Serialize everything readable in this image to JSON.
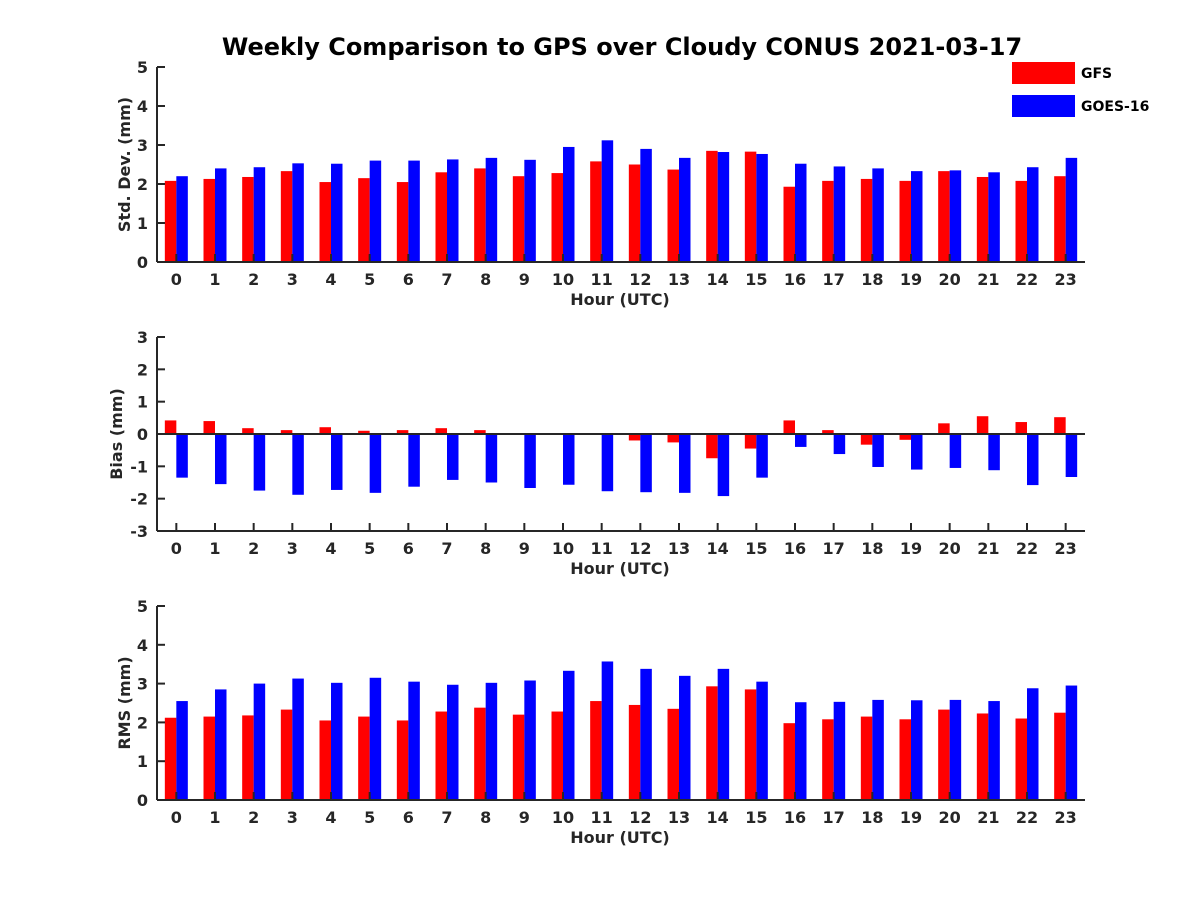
{
  "title": "Weekly Comparison to GPS over Cloudy CONUS 2021-03-17",
  "legend": [
    {
      "name": "GFS",
      "color": "#ff0000"
    },
    {
      "name": "GOES-16",
      "color": "#0000ff"
    }
  ],
  "chart_data": [
    {
      "type": "bar",
      "xlabel": "Hour (UTC)",
      "ylabel": "Std. Dev. (mm)",
      "ylim": [
        0,
        5
      ],
      "yticks": [
        0,
        1,
        2,
        3,
        4,
        5
      ],
      "categories": [
        "0",
        "1",
        "2",
        "3",
        "4",
        "5",
        "6",
        "7",
        "8",
        "9",
        "10",
        "11",
        "12",
        "13",
        "14",
        "15",
        "16",
        "17",
        "18",
        "19",
        "20",
        "21",
        "22",
        "23"
      ],
      "series": [
        {
          "name": "GFS",
          "color": "#ff0000",
          "values": [
            2.08,
            2.13,
            2.18,
            2.33,
            2.05,
            2.15,
            2.05,
            2.3,
            2.4,
            2.2,
            2.28,
            2.58,
            2.5,
            2.37,
            2.85,
            2.83,
            1.93,
            2.08,
            2.13,
            2.08,
            2.33,
            2.18,
            2.08,
            2.2
          ]
        },
        {
          "name": "GOES-16",
          "color": "#0000ff",
          "values": [
            2.2,
            2.4,
            2.43,
            2.53,
            2.52,
            2.6,
            2.6,
            2.63,
            2.67,
            2.62,
            2.95,
            3.12,
            2.9,
            2.67,
            2.82,
            2.77,
            2.52,
            2.45,
            2.4,
            2.33,
            2.35,
            2.3,
            2.43,
            2.67
          ]
        }
      ]
    },
    {
      "type": "bar",
      "xlabel": "Hour (UTC)",
      "ylabel": "Bias (mm)",
      "ylim": [
        -3,
        3
      ],
      "yticks": [
        -3,
        -2,
        -1,
        0,
        1,
        2,
        3
      ],
      "categories": [
        "0",
        "1",
        "2",
        "3",
        "4",
        "5",
        "6",
        "7",
        "8",
        "9",
        "10",
        "11",
        "12",
        "13",
        "14",
        "15",
        "16",
        "17",
        "18",
        "19",
        "20",
        "21",
        "22",
        "23"
      ],
      "series": [
        {
          "name": "GFS",
          "color": "#ff0000",
          "values": [
            0.42,
            0.4,
            0.18,
            0.12,
            0.21,
            0.1,
            0.12,
            0.18,
            0.12,
            -0.03,
            0.0,
            -0.03,
            -0.2,
            -0.26,
            -0.75,
            -0.45,
            0.42,
            0.12,
            -0.33,
            -0.18,
            0.33,
            0.55,
            0.37,
            0.52
          ]
        },
        {
          "name": "GOES-16",
          "color": "#0000ff",
          "values": [
            -1.35,
            -1.55,
            -1.75,
            -1.88,
            -1.73,
            -1.82,
            -1.63,
            -1.42,
            -1.5,
            -1.67,
            -1.57,
            -1.77,
            -1.8,
            -1.82,
            -1.92,
            -1.35,
            -0.4,
            -0.62,
            -1.02,
            -1.1,
            -1.05,
            -1.12,
            -1.58,
            -1.33
          ]
        }
      ]
    },
    {
      "type": "bar",
      "xlabel": "Hour (UTC)",
      "ylabel": "RMS (mm)",
      "ylim": [
        0,
        5
      ],
      "yticks": [
        0,
        1,
        2,
        3,
        4,
        5
      ],
      "categories": [
        "0",
        "1",
        "2",
        "3",
        "4",
        "5",
        "6",
        "7",
        "8",
        "9",
        "10",
        "11",
        "12",
        "13",
        "14",
        "15",
        "16",
        "17",
        "18",
        "19",
        "20",
        "21",
        "22",
        "23"
      ],
      "series": [
        {
          "name": "GFS",
          "color": "#ff0000",
          "values": [
            2.12,
            2.15,
            2.18,
            2.33,
            2.05,
            2.15,
            2.05,
            2.28,
            2.38,
            2.2,
            2.28,
            2.55,
            2.45,
            2.35,
            2.93,
            2.85,
            1.98,
            2.08,
            2.15,
            2.08,
            2.33,
            2.23,
            2.1,
            2.25
          ]
        },
        {
          "name": "GOES-16",
          "color": "#0000ff",
          "values": [
            2.55,
            2.85,
            3.0,
            3.13,
            3.02,
            3.15,
            3.05,
            2.97,
            3.02,
            3.08,
            3.33,
            3.57,
            3.38,
            3.2,
            3.38,
            3.05,
            2.52,
            2.53,
            2.58,
            2.57,
            2.58,
            2.55,
            2.88,
            2.95
          ]
        }
      ]
    }
  ]
}
